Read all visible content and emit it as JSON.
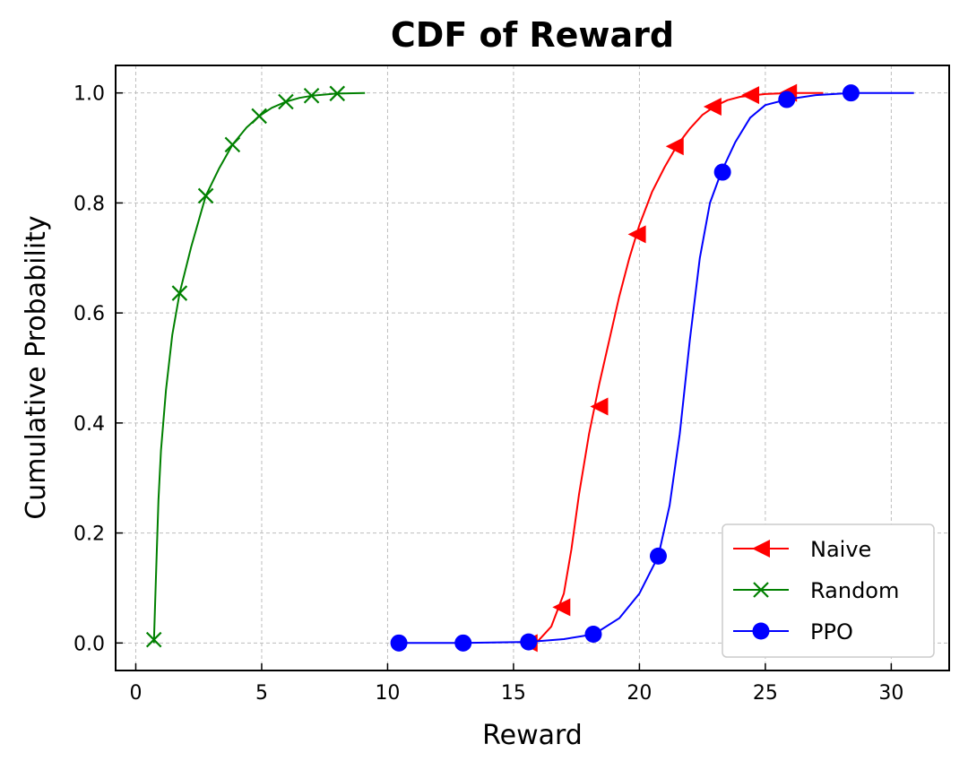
{
  "chart_data": {
    "type": "line",
    "title": "CDF of Reward",
    "xlabel": "Reward",
    "ylabel": "Cumulative Probability",
    "xlim": [
      -0.8,
      32.3
    ],
    "ylim": [
      -0.05,
      1.05
    ],
    "xticks": [
      0,
      5,
      10,
      15,
      20,
      25,
      30
    ],
    "yticks": [
      0.0,
      0.2,
      0.4,
      0.6,
      0.8,
      1.0
    ],
    "xtick_labels": [
      "0",
      "5",
      "10",
      "15",
      "20",
      "25",
      "30"
    ],
    "ytick_labels": [
      "0.0",
      "0.2",
      "0.4",
      "0.6",
      "0.8",
      "1.0"
    ],
    "grid": true,
    "legend_position": "lower-right",
    "series": [
      {
        "name": "Naive",
        "color": "#ff0000",
        "marker": "triangle-left",
        "curve": [
          [
            15.6,
            0.0
          ],
          [
            16.0,
            0.005
          ],
          [
            16.5,
            0.03
          ],
          [
            17.0,
            0.09
          ],
          [
            17.3,
            0.17
          ],
          [
            17.6,
            0.27
          ],
          [
            18.0,
            0.38
          ],
          [
            18.4,
            0.47
          ],
          [
            18.8,
            0.55
          ],
          [
            19.2,
            0.63
          ],
          [
            19.6,
            0.7
          ],
          [
            20.0,
            0.76
          ],
          [
            20.5,
            0.82
          ],
          [
            21.0,
            0.865
          ],
          [
            21.5,
            0.905
          ],
          [
            22.0,
            0.935
          ],
          [
            22.5,
            0.96
          ],
          [
            23.0,
            0.976
          ],
          [
            23.5,
            0.987
          ],
          [
            24.0,
            0.993
          ],
          [
            25.0,
            0.998
          ],
          [
            26.0,
            1.0
          ],
          [
            27.3,
            1.0
          ]
        ],
        "markers": [
          [
            15.6,
            0.0
          ],
          [
            16.9,
            0.065
          ],
          [
            18.4,
            0.43
          ],
          [
            19.9,
            0.743
          ],
          [
            21.4,
            0.903
          ],
          [
            22.9,
            0.975
          ],
          [
            24.4,
            0.996
          ],
          [
            25.9,
            1.0
          ]
        ]
      },
      {
        "name": "Random",
        "color": "#008000",
        "marker": "x",
        "curve": [
          [
            0.72,
            0.0
          ],
          [
            0.8,
            0.12
          ],
          [
            0.9,
            0.26
          ],
          [
            1.0,
            0.35
          ],
          [
            1.2,
            0.46
          ],
          [
            1.45,
            0.56
          ],
          [
            1.74,
            0.636
          ],
          [
            2.2,
            0.72
          ],
          [
            2.78,
            0.813
          ],
          [
            3.3,
            0.862
          ],
          [
            3.84,
            0.906
          ],
          [
            4.4,
            0.937
          ],
          [
            4.9,
            0.958
          ],
          [
            5.4,
            0.973
          ],
          [
            5.96,
            0.984
          ],
          [
            6.5,
            0.991
          ],
          [
            7.0,
            0.995
          ],
          [
            8.0,
            0.999
          ],
          [
            9.1,
            1.0
          ]
        ],
        "markers": [
          [
            0.72,
            0.006
          ],
          [
            1.74,
            0.636
          ],
          [
            2.78,
            0.813
          ],
          [
            3.84,
            0.906
          ],
          [
            4.9,
            0.958
          ],
          [
            5.96,
            0.984
          ],
          [
            6.98,
            0.995
          ],
          [
            8.0,
            0.999
          ]
        ]
      },
      {
        "name": "PPO",
        "color": "#0000ff",
        "marker": "circle",
        "curve": [
          [
            10.45,
            0.0
          ],
          [
            13.0,
            0.0
          ],
          [
            15.6,
            0.002
          ],
          [
            17.0,
            0.007
          ],
          [
            18.2,
            0.016
          ],
          [
            19.2,
            0.045
          ],
          [
            20.0,
            0.09
          ],
          [
            20.75,
            0.158
          ],
          [
            21.2,
            0.25
          ],
          [
            21.6,
            0.38
          ],
          [
            22.0,
            0.55
          ],
          [
            22.4,
            0.7
          ],
          [
            22.8,
            0.8
          ],
          [
            23.25,
            0.856
          ],
          [
            23.8,
            0.91
          ],
          [
            24.4,
            0.955
          ],
          [
            25.0,
            0.978
          ],
          [
            25.85,
            0.988
          ],
          [
            27.0,
            0.996
          ],
          [
            28.4,
            1.0
          ],
          [
            30.9,
            1.0
          ]
        ],
        "markers": [
          [
            10.45,
            0.0
          ],
          [
            13.0,
            0.0
          ],
          [
            15.6,
            0.002
          ],
          [
            18.17,
            0.016
          ],
          [
            20.75,
            0.158
          ],
          [
            23.3,
            0.856
          ],
          [
            25.85,
            0.988
          ],
          [
            28.4,
            1.0
          ]
        ]
      }
    ]
  }
}
